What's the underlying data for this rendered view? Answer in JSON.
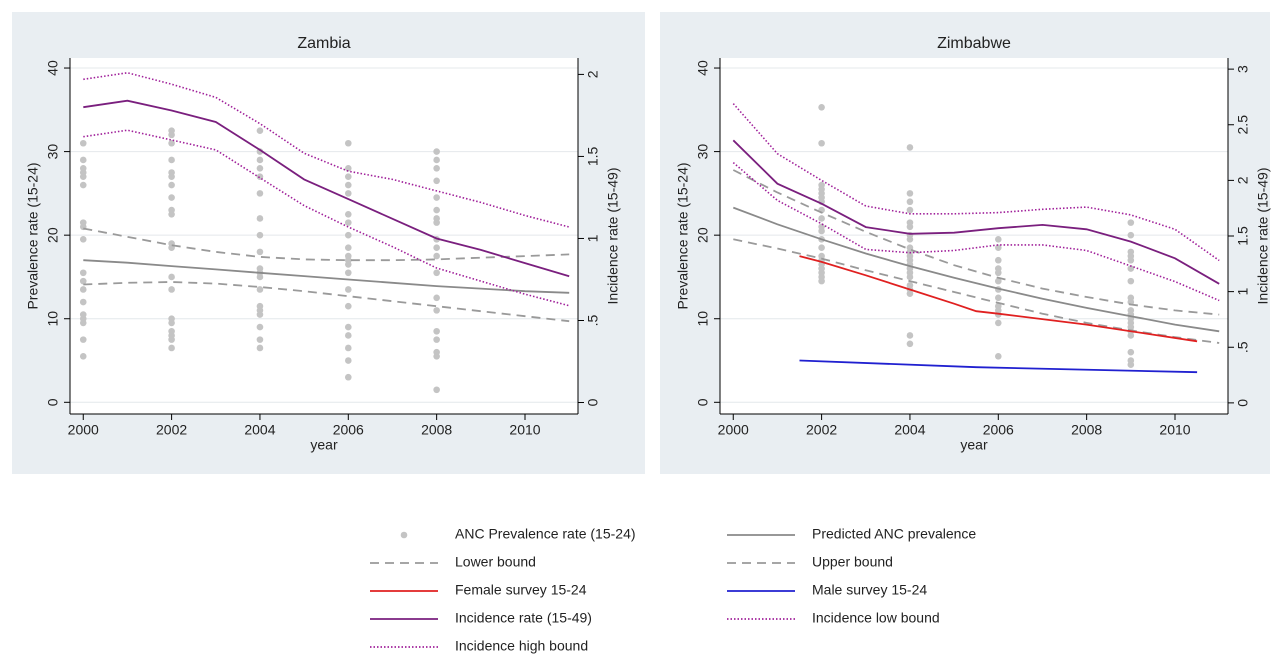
{
  "chart_data": [
    {
      "type": "line",
      "title": "Zambia",
      "x_label": "year",
      "y_label": "Prevalence rate (15-24)",
      "y2_label": "Incidence rate (15-49)",
      "xlim": [
        1999.7,
        2011.2
      ],
      "xticks": [
        2000,
        2002,
        2004,
        2006,
        2008,
        2010
      ],
      "ylim": [
        -1.4,
        41.2
      ],
      "yticks": [
        0,
        10,
        20,
        30,
        40
      ],
      "y2lim": [
        -0.07,
        2.1
      ],
      "y2ticks": [
        0,
        {
          "value": 0.5,
          "label": ".5"
        },
        1,
        1.5,
        2
      ],
      "grid": true,
      "series": [
        {
          "type": "scatter",
          "color": "#c4c4c4",
          "x": [
            2000,
            2000,
            2000,
            2000,
            2000,
            2000,
            2000,
            2000,
            2000,
            2000,
            2000,
            2000,
            2000,
            2000,
            2000,
            2000,
            2000,
            2000,
            2002,
            2002,
            2002,
            2002,
            2002,
            2002,
            2002,
            2002,
            2002,
            2002,
            2002,
            2002,
            2002,
            2002,
            2002,
            2002,
            2002,
            2002,
            2002,
            2002,
            2004,
            2004,
            2004,
            2004,
            2004,
            2004,
            2004,
            2004,
            2004,
            2004,
            2004,
            2004,
            2004,
            2004,
            2004,
            2004,
            2004,
            2004,
            2004,
            2006,
            2006,
            2006,
            2006,
            2006,
            2006,
            2006,
            2006,
            2006,
            2006,
            2006,
            2006,
            2006,
            2006,
            2006,
            2006,
            2006,
            2006,
            2006,
            2006,
            2008,
            2008,
            2008,
            2008,
            2008,
            2008,
            2008,
            2008,
            2008,
            2008,
            2008,
            2008,
            2008,
            2008,
            2008,
            2008,
            2008,
            2008,
            2008
          ],
          "values": [
            31,
            29,
            28,
            27.5,
            27,
            26,
            21.5,
            21,
            19.5,
            15.5,
            14.5,
            13.5,
            12,
            10.5,
            10,
            9.5,
            7.5,
            5.5,
            32.5,
            32,
            31,
            29,
            27.5,
            27,
            26,
            24.5,
            23,
            22.5,
            19,
            18.5,
            15,
            13.5,
            10,
            9.5,
            8.5,
            8,
            7.5,
            6.5,
            32.5,
            30,
            29,
            28,
            27,
            25,
            22,
            20,
            18,
            16,
            15.5,
            15,
            13.5,
            11.5,
            11,
            10.5,
            9,
            7.5,
            6.5,
            31,
            28,
            27,
            26,
            25,
            22.5,
            21.5,
            20,
            18.5,
            17.5,
            17,
            16.5,
            15.5,
            13.5,
            11.5,
            9,
            8,
            6.5,
            5,
            3,
            30,
            29,
            28,
            26.5,
            24.5,
            23,
            22,
            21.5,
            19.5,
            18.5,
            17.5,
            15.5,
            12.5,
            11,
            8.5,
            7.5,
            6,
            5.5,
            1.5
          ]
        },
        {
          "type": "line",
          "style": "solid",
          "color": "#8a8a8a",
          "x": [
            2000,
            2001,
            2002,
            2003,
            2004,
            2005,
            2006,
            2007,
            2008,
            2009,
            2010,
            2011
          ],
          "values": [
            17,
            16.7,
            16.3,
            15.9,
            15.5,
            15.1,
            14.7,
            14.3,
            13.9,
            13.6,
            13.3,
            13.1
          ]
        },
        {
          "type": "line",
          "style": "dashed",
          "color": "#9a9a9a",
          "x": [
            2000,
            2001,
            2002,
            2003,
            2004,
            2005,
            2006,
            2007,
            2008,
            2009,
            2010,
            2011
          ],
          "values": [
            14.1,
            14.3,
            14.4,
            14.2,
            13.8,
            13.3,
            12.7,
            12.1,
            11.5,
            10.9,
            10.3,
            9.7
          ]
        },
        {
          "type": "line",
          "style": "dashed",
          "color": "#9a9a9a",
          "x": [
            2000,
            2001,
            2002,
            2003,
            2004,
            2005,
            2006,
            2007,
            2008,
            2009,
            2010,
            2011
          ],
          "values": [
            20.8,
            19.8,
            18.8,
            18,
            17.4,
            17.1,
            17,
            17,
            17.1,
            17.3,
            17.5,
            17.7
          ]
        },
        {
          "type": "line",
          "style": "solid",
          "axis": "y2",
          "color": "#7a1f7e",
          "x": [
            2000,
            2001,
            2002,
            2003,
            2004,
            2005,
            2006,
            2007,
            2008,
            2009,
            2010,
            2011
          ],
          "values": [
            1.8,
            1.84,
            1.78,
            1.71,
            1.54,
            1.36,
            1.24,
            1.12,
            1,
            0.93,
            0.85,
            0.77
          ]
        },
        {
          "type": "line",
          "style": "dotted",
          "axis": "y2",
          "color": "#a0209a",
          "x": [
            2000,
            2001,
            2002,
            2003,
            2004,
            2005,
            2006,
            2007,
            2008,
            2009,
            2010,
            2011
          ],
          "values": [
            1.62,
            1.66,
            1.6,
            1.54,
            1.37,
            1.2,
            1.07,
            0.95,
            0.82,
            0.74,
            0.66,
            0.59
          ]
        },
        {
          "type": "line",
          "style": "dotted",
          "axis": "y2",
          "color": "#a0209a",
          "x": [
            2000,
            2001,
            2002,
            2003,
            2004,
            2005,
            2006,
            2007,
            2008,
            2009,
            2010,
            2011
          ],
          "values": [
            1.97,
            2.01,
            1.94,
            1.86,
            1.7,
            1.52,
            1.41,
            1.36,
            1.29,
            1.22,
            1.14,
            1.07
          ]
        }
      ]
    },
    {
      "type": "line",
      "title": "Zimbabwe",
      "x_label": "year",
      "y_label": "Prevalence rate (15-24)",
      "y2_label": "Incidence rate (15-49)",
      "xlim": [
        1999.7,
        2011.2
      ],
      "xticks": [
        2000,
        2002,
        2004,
        2006,
        2008,
        2010
      ],
      "ylim": [
        -1.4,
        41.2
      ],
      "yticks": [
        0,
        10,
        20,
        30,
        40
      ],
      "y2lim": [
        -0.1,
        3.1
      ],
      "y2ticks": [
        0,
        {
          "value": 0.5,
          "label": ".5"
        },
        1,
        1.5,
        2,
        2.5,
        3
      ],
      "grid": true,
      "series": [
        {
          "name": "ANC Prevalence rate (15-24)",
          "type": "scatter",
          "color": "#c4c4c4",
          "x": [
            2002,
            2002,
            2002,
            2002,
            2002,
            2002,
            2002,
            2002,
            2002,
            2002,
            2002,
            2002,
            2002,
            2002,
            2002,
            2002,
            2002,
            2002,
            2002,
            2002,
            2004,
            2004,
            2004,
            2004,
            2004,
            2004,
            2004,
            2004,
            2004,
            2004,
            2004,
            2004,
            2004,
            2004,
            2004,
            2004,
            2004,
            2004,
            2004,
            2004,
            2004,
            2006,
            2006,
            2006,
            2006,
            2006,
            2006,
            2006,
            2006,
            2006,
            2006,
            2006,
            2006,
            2006,
            2009,
            2009,
            2009,
            2009,
            2009,
            2009,
            2009,
            2009,
            2009,
            2009,
            2009,
            2009,
            2009,
            2009,
            2009,
            2009,
            2009,
            2009,
            2009
          ],
          "values": [
            35.3,
            31,
            26,
            25.5,
            25,
            24.5,
            24,
            23,
            22,
            21,
            20.5,
            19.5,
            18.5,
            17.5,
            17,
            16.5,
            16,
            15.5,
            15,
            14.5,
            30.5,
            25,
            24,
            23,
            21.5,
            21,
            20,
            19.5,
            18.5,
            18,
            17.5,
            17,
            16.5,
            16,
            15.5,
            15,
            14,
            13.5,
            13,
            8,
            7,
            19.5,
            18.5,
            17,
            16,
            15.5,
            14.5,
            13.5,
            12.5,
            11.5,
            11,
            10.5,
            9.5,
            5.5,
            21.5,
            20,
            18,
            17.5,
            17,
            16,
            14.5,
            12.5,
            12,
            11,
            10.5,
            10,
            9.5,
            9,
            8.5,
            8,
            6,
            5,
            4.5
          ]
        },
        {
          "name": "Predicted ANC prevalence",
          "type": "line",
          "style": "solid",
          "color": "#8a8a8a",
          "x": [
            2000,
            2001,
            2002,
            2003,
            2004,
            2005,
            2006,
            2007,
            2008,
            2009,
            2010,
            2011
          ],
          "values": [
            23.3,
            21.3,
            19.5,
            17.8,
            16.3,
            14.9,
            13.6,
            12.4,
            11.3,
            10.3,
            9.3,
            8.5
          ]
        },
        {
          "name": "Lower bound",
          "type": "line",
          "style": "dashed",
          "color": "#9a9a9a",
          "x": [
            2000,
            2001,
            2002,
            2003,
            2004,
            2005,
            2006,
            2007,
            2008,
            2009,
            2010,
            2011
          ],
          "values": [
            19.5,
            18.4,
            17.2,
            15.8,
            14.5,
            13.2,
            11.9,
            10.6,
            9.5,
            8.6,
            7.8,
            7.1
          ]
        },
        {
          "name": "Upper bound",
          "type": "line",
          "style": "dashed",
          "color": "#9a9a9a",
          "x": [
            2000,
            2001,
            2002,
            2003,
            2004,
            2005,
            2006,
            2007,
            2008,
            2009,
            2010,
            2011
          ],
          "values": [
            27.8,
            25.1,
            22.7,
            20.4,
            18.3,
            16.4,
            14.9,
            13.6,
            12.6,
            11.7,
            11,
            10.5
          ]
        },
        {
          "name": "Female survey 15-24",
          "type": "line",
          "style": "solid",
          "color": "#e02020",
          "x": [
            2001.5,
            2002,
            2003,
            2004,
            2005,
            2005.5,
            2006,
            2008,
            2010.5
          ],
          "values": [
            17.5,
            16.8,
            15.2,
            13.5,
            11.8,
            10.9,
            10.6,
            9.3,
            7.3
          ]
        },
        {
          "name": "Male survey 15-24",
          "type": "line",
          "style": "solid",
          "color": "#2020d0",
          "x": [
            2001.5,
            2005.5,
            2010.5
          ],
          "values": [
            5,
            4.2,
            3.6
          ]
        },
        {
          "name": "Incidence rate (15-49)",
          "type": "line",
          "style": "solid",
          "axis": "y2",
          "color": "#7a1f7e",
          "x": [
            2000,
            2001,
            2002,
            2003,
            2004,
            2005,
            2006,
            2007,
            2008,
            2009,
            2010,
            2011
          ],
          "values": [
            2.36,
            1.97,
            1.79,
            1.58,
            1.52,
            1.53,
            1.57,
            1.6,
            1.56,
            1.45,
            1.3,
            1.07
          ]
        },
        {
          "name": "Incidence low bound",
          "type": "line",
          "style": "dotted",
          "axis": "y2",
          "color": "#a0209a",
          "x": [
            2000,
            2001,
            2002,
            2003,
            2004,
            2005,
            2006,
            2007,
            2008,
            2009,
            2010,
            2011
          ],
          "values": [
            2.16,
            1.82,
            1.61,
            1.38,
            1.35,
            1.37,
            1.42,
            1.42,
            1.37,
            1.23,
            1.09,
            0.92
          ]
        },
        {
          "name": "Incidence high bound",
          "type": "line",
          "style": "dotted",
          "axis": "y2",
          "color": "#a0209a",
          "x": [
            2000,
            2001,
            2002,
            2003,
            2004,
            2005,
            2006,
            2007,
            2008,
            2009,
            2010,
            2011
          ],
          "values": [
            2.69,
            2.24,
            2,
            1.77,
            1.7,
            1.7,
            1.71,
            1.74,
            1.76,
            1.69,
            1.56,
            1.28
          ]
        }
      ]
    }
  ]
}
